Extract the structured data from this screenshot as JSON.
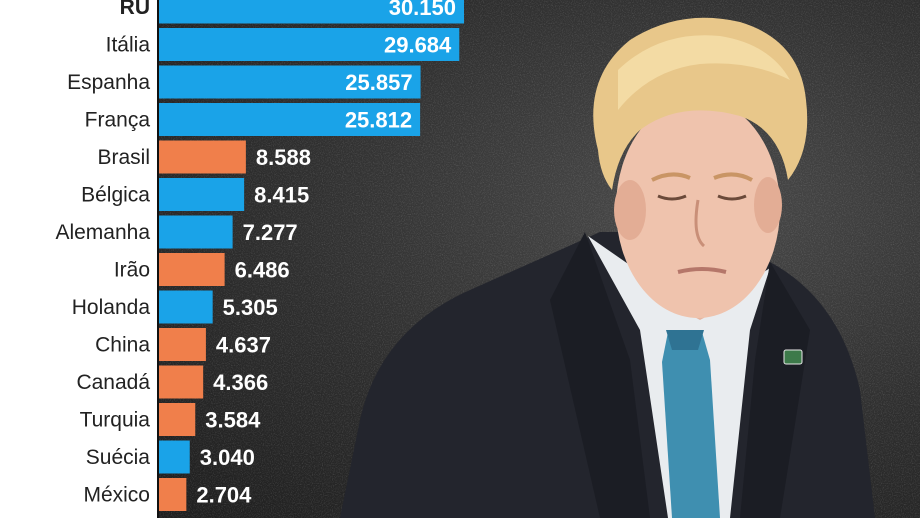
{
  "chart_data": {
    "type": "bar",
    "orientation": "horizontal",
    "categories": [
      "RU",
      "Itália",
      "Espanha",
      "França",
      "Brasil",
      "Bélgica",
      "Alemanha",
      "Irão",
      "Holanda",
      "China",
      "Canadá",
      "Turquia",
      "Suécia",
      "México"
    ],
    "values": [
      30150,
      29684,
      25857,
      25812,
      8588,
      8415,
      7277,
      6486,
      5305,
      4637,
      4366,
      3584,
      3040,
      2704
    ],
    "value_labels": [
      "30.150",
      "29.684",
      "25.857",
      "25.812",
      "8.588",
      "8.415",
      "7.277",
      "6.486",
      "5.305",
      "4.637",
      "4.366",
      "3.584",
      "3.040",
      "2.704"
    ],
    "highlight": [
      false,
      false,
      false,
      false,
      true,
      false,
      false,
      true,
      false,
      true,
      true,
      true,
      false,
      true
    ],
    "grid": false,
    "legend": "none",
    "colors": {
      "europe": "#1aa3e8",
      "other": "#f07f4b",
      "background": "#2f2f2f"
    }
  },
  "photo": {
    "subject": "man-in-suit-photo"
  }
}
